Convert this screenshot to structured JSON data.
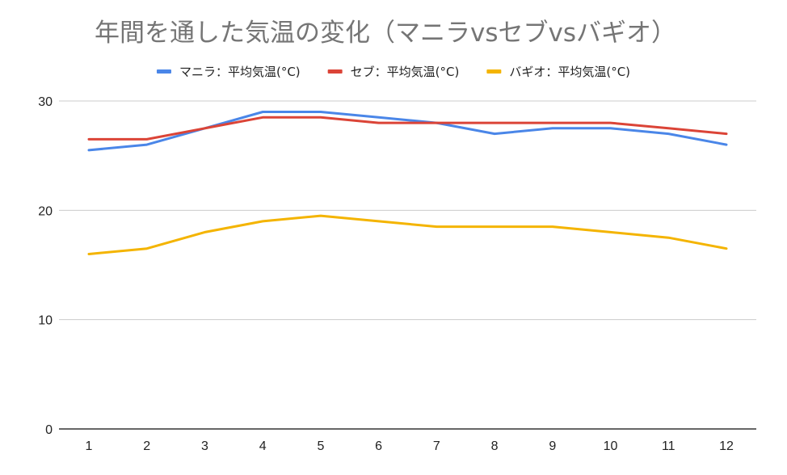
{
  "chart_data": {
    "type": "line",
    "title": "年間を通した気温の変化（マニラvsセブvsバギオ）",
    "xlabel": "",
    "ylabel": "",
    "x": [
      "1",
      "2",
      "3",
      "4",
      "5",
      "6",
      "7",
      "8",
      "9",
      "10",
      "11",
      "12"
    ],
    "ylim": [
      0,
      30
    ],
    "y_ticks": [
      "0",
      "10",
      "20",
      "30"
    ],
    "grid": true,
    "legend_position": "top-center",
    "series": [
      {
        "name": "マニラ：平均気温(°C)",
        "color": "#4a86e8",
        "values": [
          25.5,
          26,
          27.5,
          29,
          29,
          28.5,
          28,
          27,
          27.5,
          27.5,
          27,
          26
        ]
      },
      {
        "name": "セブ：平均気温(°C)",
        "color": "#db4437",
        "values": [
          26.5,
          26.5,
          27.5,
          28.5,
          28.5,
          28,
          28,
          28,
          28,
          28,
          27.5,
          27
        ]
      },
      {
        "name": "バギオ：平均気温(°C)",
        "color": "#f4b400",
        "values": [
          16,
          16.5,
          18,
          19,
          19.5,
          19,
          18.5,
          18.5,
          18.5,
          18,
          17.5,
          16.5
        ]
      }
    ]
  }
}
